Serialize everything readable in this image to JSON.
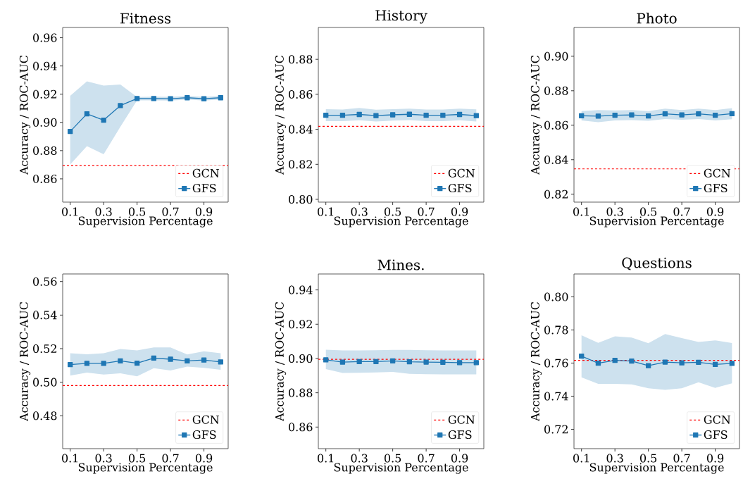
{
  "chart_data": [
    {
      "type": "line",
      "title": "Fitness",
      "xlabel": "Supervision Percentage",
      "ylabel": "Accuracy / ROC-AUC",
      "x": [
        0.1,
        0.2,
        0.3,
        0.4,
        0.5,
        0.6,
        0.7,
        0.8,
        0.9,
        1.0
      ],
      "series": [
        {
          "name": "GFS",
          "color": "#1f77b4",
          "values": [
            0.8936,
            0.9061,
            0.9016,
            0.9119,
            0.9169,
            0.9169,
            0.9168,
            0.9175,
            0.9168,
            0.9175
          ],
          "lower": [
            0.8702,
            0.8832,
            0.8774,
            0.8969,
            0.9156,
            0.9156,
            0.9155,
            0.9162,
            0.9155,
            0.9162
          ],
          "upper": [
            0.9189,
            0.9291,
            0.9261,
            0.9269,
            0.918,
            0.9182,
            0.9181,
            0.9188,
            0.9181,
            0.9188
          ]
        }
      ],
      "ref_lines": [
        {
          "axis": "y",
          "value": 0.8695,
          "label": "GCN",
          "color": "#ff0000",
          "line_style": "dashed"
        }
      ],
      "xlim": [
        0.055,
        1.045
      ],
      "ylim": [
        0.8435,
        0.9673
      ],
      "xticks": [
        0.1,
        0.3,
        0.5,
        0.7,
        0.9
      ],
      "yticks": [
        0.86,
        0.88,
        {
          "value": 0.9,
          "label": "0.90"
        },
        0.92,
        0.94,
        0.96
      ],
      "legend": "bottom right",
      "marker": "square",
      "line_style": "solid"
    },
    {
      "type": "line",
      "title": "History",
      "xlabel": "Supervision Percentage",
      "ylabel": "Accuracy / ROC-AUC",
      "x": [
        0.1,
        0.2,
        0.3,
        0.4,
        0.5,
        0.6,
        0.7,
        0.8,
        0.9,
        1.0
      ],
      "series": [
        {
          "name": "GFS",
          "color": "#1f77b4",
          "values": [
            0.848,
            0.848,
            0.8485,
            0.8478,
            0.8483,
            0.8486,
            0.848,
            0.848,
            0.8485,
            0.8478
          ],
          "lower": [
            0.8447,
            0.8447,
            0.8452,
            0.8445,
            0.845,
            0.8453,
            0.8447,
            0.8447,
            0.8452,
            0.8445
          ],
          "upper": [
            0.8515,
            0.8513,
            0.8522,
            0.8512,
            0.8515,
            0.8518,
            0.8513,
            0.8513,
            0.8518,
            0.8514
          ]
        }
      ],
      "ref_lines": [
        {
          "axis": "y",
          "value": 0.8417,
          "label": "GCN",
          "color": "#ff0000",
          "line_style": "dashed"
        }
      ],
      "xlim": [
        0.055,
        1.045
      ],
      "ylim": [
        0.7984,
        0.8982
      ],
      "xticks": [
        0.1,
        0.3,
        0.5,
        0.7,
        0.9
      ],
      "yticks": [
        {
          "value": 0.8,
          "label": "0.80"
        },
        0.82,
        0.84,
        0.86,
        0.88
      ],
      "legend": "bottom right",
      "marker": "square",
      "line_style": "solid"
    },
    {
      "type": "line",
      "title": "Photo",
      "xlabel": "Supervision Percentage",
      "ylabel": "Accuracy / ROC-AUC",
      "x": [
        0.1,
        0.2,
        0.3,
        0.4,
        0.5,
        0.6,
        0.7,
        0.8,
        0.9,
        1.0
      ],
      "series": [
        {
          "name": "GFS",
          "color": "#1f77b4",
          "values": [
            0.8655,
            0.8653,
            0.8658,
            0.866,
            0.8654,
            0.8666,
            0.866,
            0.8666,
            0.8658,
            0.8667
          ],
          "lower": [
            0.8628,
            0.8618,
            0.8628,
            0.863,
            0.8626,
            0.8636,
            0.8632,
            0.8636,
            0.8628,
            0.8635
          ],
          "upper": [
            0.8682,
            0.8688,
            0.8686,
            0.8688,
            0.8682,
            0.8696,
            0.8688,
            0.8696,
            0.8688,
            0.8699
          ]
        }
      ],
      "ref_lines": [
        {
          "axis": "y",
          "value": 0.8347,
          "label": "GCN",
          "color": "#ff0000",
          "line_style": "dashed"
        }
      ],
      "xlim": [
        0.055,
        1.045
      ],
      "ylim": [
        0.8154,
        0.9167
      ],
      "xticks": [
        0.1,
        0.3,
        0.5,
        0.7,
        0.9
      ],
      "yticks": [
        0.82,
        0.84,
        0.86,
        0.88,
        {
          "value": 0.9,
          "label": "0.90"
        }
      ],
      "legend": "bottom right",
      "marker": "square",
      "line_style": "solid"
    },
    {
      "type": "line",
      "xlabel": "Supervision Percentage",
      "ylabel": "Accuracy / ROC-AUC",
      "x": [
        0.1,
        0.2,
        0.3,
        0.4,
        0.5,
        0.6,
        0.7,
        0.8,
        0.9,
        1.0
      ],
      "series": [
        {
          "name": "GFS",
          "color": "#1f77b4",
          "values": [
            0.5105,
            0.5112,
            0.5112,
            0.5127,
            0.5113,
            0.5144,
            0.5137,
            0.5127,
            0.5132,
            0.5121
          ],
          "lower": [
            0.5039,
            0.5057,
            0.5046,
            0.5053,
            0.5035,
            0.5084,
            0.507,
            0.5093,
            0.5086,
            0.5074
          ],
          "upper": [
            0.5173,
            0.5166,
            0.5173,
            0.5198,
            0.519,
            0.5207,
            0.5207,
            0.5165,
            0.5184,
            0.5173
          ]
        }
      ],
      "ref_lines": [
        {
          "axis": "y",
          "value": 0.498,
          "label": "GCN",
          "color": "#ff0000",
          "line_style": "dashed"
        }
      ],
      "xlim": [
        0.055,
        1.045
      ],
      "ylim": [
        0.4604,
        0.5645
      ],
      "xticks": [
        0.1,
        0.3,
        0.5,
        0.7,
        0.9
      ],
      "yticks": [
        0.48,
        {
          "value": 0.5,
          "label": "0.50"
        },
        0.52,
        0.54,
        0.56
      ],
      "legend": "bottom right",
      "marker": "square",
      "line_style": "solid"
    },
    {
      "type": "line",
      "title": "Mines.",
      "xlabel": "Supervision Percentage",
      "ylabel": "Accuracy / ROC-AUC",
      "x": [
        0.1,
        0.2,
        0.3,
        0.4,
        0.5,
        0.6,
        0.7,
        0.8,
        0.9,
        1.0
      ],
      "series": [
        {
          "name": "GFS",
          "color": "#1f77b4",
          "values": [
            0.8992,
            0.8979,
            0.8982,
            0.8982,
            0.8986,
            0.8981,
            0.8979,
            0.8978,
            0.8976,
            0.8976
          ],
          "lower": [
            0.8938,
            0.8916,
            0.8917,
            0.8919,
            0.8922,
            0.8911,
            0.8908,
            0.8907,
            0.8907,
            0.8907
          ],
          "upper": [
            0.9051,
            0.9047,
            0.9047,
            0.9048,
            0.905,
            0.905,
            0.9048,
            0.9047,
            0.9047,
            0.9047
          ]
        }
      ],
      "ref_lines": [
        {
          "axis": "y",
          "value": 0.8995,
          "label": "GCN",
          "color": "#ff0000",
          "line_style": "dashed"
        }
      ],
      "xlim": [
        0.055,
        1.045
      ],
      "ylim": [
        0.8474,
        0.9493
      ],
      "xticks": [
        0.1,
        0.3,
        0.5,
        0.7,
        0.9
      ],
      "yticks": [
        0.86,
        0.88,
        {
          "value": 0.9,
          "label": "0.90"
        },
        0.92,
        0.94
      ],
      "legend": "bottom right",
      "marker": "square",
      "line_style": "solid"
    },
    {
      "type": "line",
      "title": "Questions",
      "xlabel": "Supervision Percentage",
      "ylabel": "Accuracy / ROC-AUC",
      "x": [
        0.1,
        0.2,
        0.3,
        0.4,
        0.5,
        0.6,
        0.7,
        0.8,
        0.9,
        1.0
      ],
      "series": [
        {
          "name": "GFS",
          "color": "#1f77b4",
          "values": [
            0.7642,
            0.7599,
            0.7616,
            0.7612,
            0.7584,
            0.7606,
            0.7601,
            0.7605,
            0.7592,
            0.7598
          ],
          "lower": [
            0.7514,
            0.7474,
            0.7474,
            0.7471,
            0.7448,
            0.7438,
            0.7448,
            0.7484,
            0.745,
            0.7477
          ],
          "upper": [
            0.7768,
            0.7722,
            0.7761,
            0.7754,
            0.772,
            0.7775,
            0.7751,
            0.7727,
            0.7737,
            0.7721
          ]
        }
      ],
      "ref_lines": [
        {
          "axis": "y",
          "value": 0.7616,
          "label": "GCN",
          "color": "#ff0000",
          "line_style": "dashed"
        }
      ],
      "xlim": [
        0.055,
        1.045
      ],
      "ylim": [
        0.7083,
        0.8138
      ],
      "xticks": [
        0.1,
        0.3,
        0.5,
        0.7,
        0.9
      ],
      "yticks": [
        0.72,
        0.74,
        0.76,
        0.78,
        {
          "value": 0.8,
          "label": "0.80"
        }
      ],
      "legend": "bottom right",
      "marker": "square",
      "line_style": "solid"
    }
  ]
}
